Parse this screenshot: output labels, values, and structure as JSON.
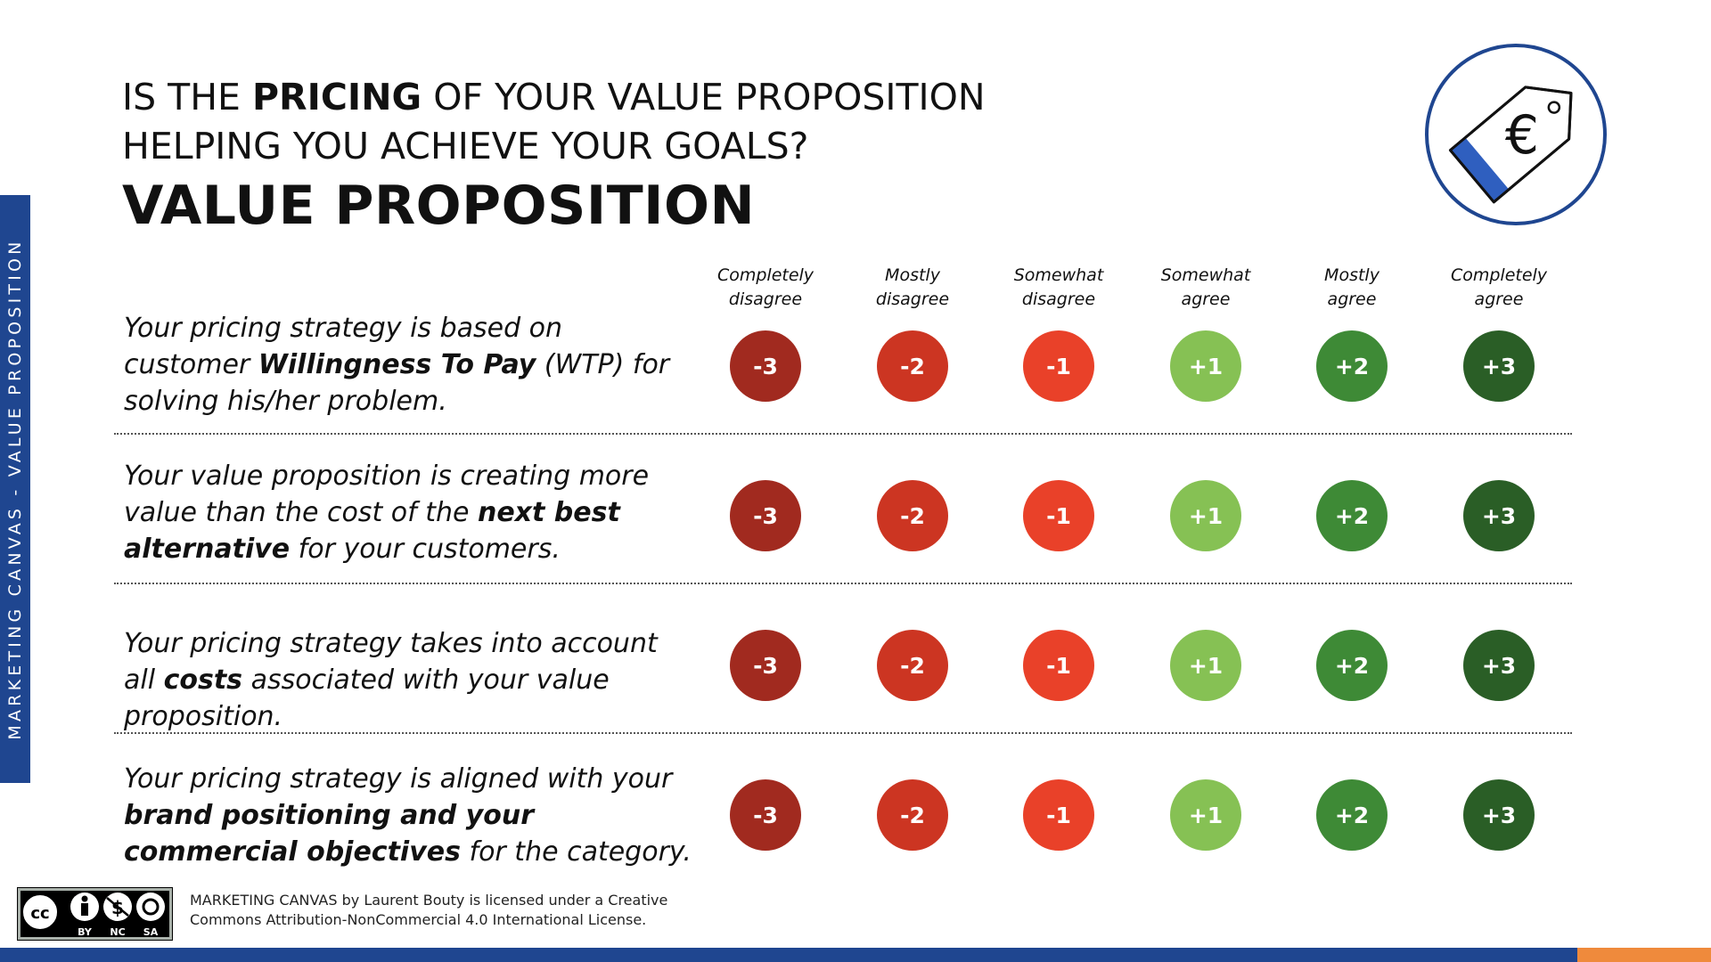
{
  "sidebar": {
    "label": "MARKETING CANVAS - VALUE PROPOSITION"
  },
  "header": {
    "question_pre": "IS THE ",
    "question_bold": "PRICING",
    "question_post_line1": " OF YOUR VALUE PROPOSITION",
    "question_line2": "HELPING YOU ACHIEVE YOUR GOALS?",
    "title": "VALUE PROPOSITION"
  },
  "logo": {
    "icon": "price-tag-euro-icon",
    "symbol": "€"
  },
  "scale": {
    "columns": [
      {
        "line1": "Completely",
        "line2": "disagree",
        "value": "-3",
        "color": "#a12a1f"
      },
      {
        "line1": "Mostly",
        "line2": "disagree",
        "value": "-2",
        "color": "#cc3522"
      },
      {
        "line1": "Somewhat",
        "line2": "disagree",
        "value": "-1",
        "color": "#e94129"
      },
      {
        "line1": "Somewhat",
        "line2": "agree",
        "value": "+1",
        "color": "#86c154"
      },
      {
        "line1": "Mostly",
        "line2": "agree",
        "value": "+2",
        "color": "#3e8a36"
      },
      {
        "line1": "Completely",
        "line2": "agree",
        "value": "+3",
        "color": "#2a5e26"
      }
    ]
  },
  "statements": [
    {
      "parts": [
        {
          "text": "Your pricing strategy is based on customer ",
          "bold": false
        },
        {
          "text": "Willingness To Pay",
          "bold": true
        },
        {
          "text": " (WTP) for solving his/her problem.",
          "bold": false
        }
      ]
    },
    {
      "parts": [
        {
          "text": "Your value proposition is creating more value than the cost of the ",
          "bold": false
        },
        {
          "text": "next best alternative",
          "bold": true
        },
        {
          "text": " for your customers.",
          "bold": false
        }
      ]
    },
    {
      "parts": [
        {
          "text": "Your pricing strategy takes into account all ",
          "bold": false
        },
        {
          "text": "costs",
          "bold": true
        },
        {
          "text": " associated with your value proposition.",
          "bold": false
        }
      ]
    },
    {
      "parts": [
        {
          "text": "Your pricing strategy is aligned with your ",
          "bold": false
        },
        {
          "text": "brand positioning and your commercial objectives",
          "bold": true
        },
        {
          "text": " for the category.",
          "bold": false
        }
      ]
    }
  ],
  "license": {
    "badge_labels": [
      "BY",
      "NC",
      "SA"
    ],
    "line1": "MARKETING CANVAS by Laurent Bouty is licensed under a Creative",
    "line2": "Commons Attribution-NonCommercial 4.0 International License."
  },
  "colors": {
    "brand_blue": "#1f4690",
    "accent_orange": "#ef8a3c"
  }
}
